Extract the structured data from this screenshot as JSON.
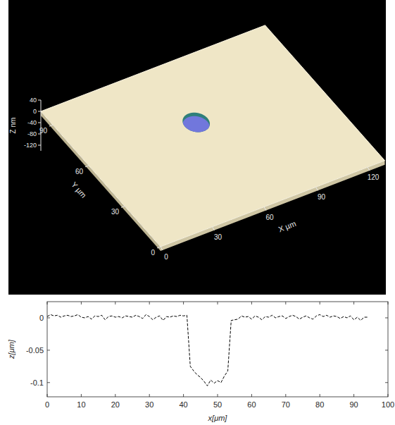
{
  "chart_data": [
    {
      "type": "surface",
      "xlabel": "X µm",
      "ylabel": "Y µm",
      "zlabel": "Z nm",
      "xlim": [
        0,
        130
      ],
      "ylim": [
        0,
        100
      ],
      "zlim": [
        -140,
        40
      ],
      "xticks": [
        0,
        30,
        60,
        90,
        120
      ],
      "yticks": [
        0,
        30,
        60,
        90
      ],
      "zticks": [
        40,
        0,
        -40,
        -80,
        -120
      ],
      "pit": {
        "x": 63,
        "y": 61,
        "diameter": 13
      },
      "color": "#efe6c6"
    },
    {
      "type": "line",
      "xlabel": "x[μm]",
      "ylabel": "z[μm]",
      "xlim": [
        0,
        100
      ],
      "ylim": [
        -0.122,
        0.025
      ],
      "xticks": [
        0,
        10,
        20,
        30,
        40,
        50,
        60,
        70,
        80,
        90,
        100
      ],
      "yticks": [
        -0.1,
        -0.05,
        0
      ],
      "color": "#000000",
      "line_style": "dashed",
      "x": [
        0,
        1,
        2,
        3,
        4,
        5,
        6,
        7,
        8,
        9,
        10,
        11,
        12,
        13,
        14,
        15,
        16,
        17,
        18,
        19,
        20,
        21,
        22,
        23,
        24,
        25,
        26,
        27,
        28,
        29,
        30,
        31,
        32,
        33,
        34,
        35,
        36,
        37,
        38,
        39,
        40,
        41,
        42,
        43,
        44,
        45,
        46,
        47,
        48,
        49,
        50,
        51,
        52,
        53,
        54,
        55,
        56,
        57,
        58,
        59,
        60,
        61,
        62,
        63,
        64,
        65,
        66,
        67,
        68,
        69,
        70,
        71,
        72,
        73,
        74,
        75,
        76,
        77,
        78,
        79,
        80,
        81,
        82,
        83,
        84,
        85,
        86,
        87,
        88,
        89,
        90,
        91,
        92,
        93,
        94
      ],
      "values": [
        0.002,
        0.005,
        0.003,
        0.004,
        0.001,
        0.003,
        0.004,
        0.002,
        0.003,
        0.005,
        0.001,
        0.0,
        0.002,
        -0.002,
        0.003,
        0.002,
        0.004,
        -0.003,
        0.002,
        0.003,
        0.001,
        0.002,
        0.0,
        0.003,
        0.002,
        0.001,
        0.004,
        0.002,
        -0.001,
        0.005,
        0.002,
        -0.003,
        0.001,
        0.003,
        -0.004,
        0.002,
        0.001,
        0.003,
        0.002,
        0.004,
        0.003,
        0.004,
        -0.075,
        -0.082,
        -0.088,
        -0.092,
        -0.098,
        -0.105,
        -0.096,
        -0.101,
        -0.097,
        -0.1,
        -0.09,
        -0.082,
        -0.004,
        -0.003,
        -0.002,
        0.003,
        0.001,
        0.002,
        -0.002,
        0.003,
        0.001,
        -0.003,
        0.002,
        0.001,
        0.004,
        0.0,
        0.002,
        0.003,
        -0.001,
        0.002,
        0.004,
        0.002,
        -0.002,
        0.001,
        0.003,
        0.0,
        -0.002,
        0.003,
        0.005,
        0.002,
        0.004,
        0.001,
        0.003,
        0.002,
        -0.001,
        0.002,
        0.0,
        0.003,
        -0.003,
        0.001,
        -0.004,
        0.001,
        0.001
      ]
    }
  ]
}
